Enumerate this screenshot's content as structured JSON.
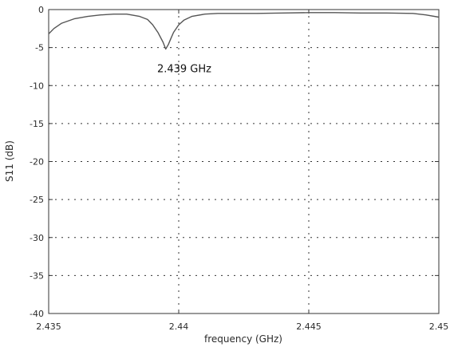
{
  "chart_data": {
    "type": "line",
    "title": "",
    "xlabel": "frequency (GHz)",
    "ylabel": "S11 (dB)",
    "xlim": [
      2.435,
      2.45
    ],
    "ylim": [
      -40,
      0
    ],
    "x_ticks": [
      "2.435",
      "2.44",
      "2.445",
      "2.45"
    ],
    "y_ticks": [
      "0",
      "-5",
      "-10",
      "-15",
      "-20",
      "-25",
      "-30",
      "-35",
      "-40"
    ],
    "grid": true,
    "grid_style": "dotted",
    "line_color": "#555555",
    "series": [
      {
        "x": [
          2.435,
          2.4352,
          2.4355,
          2.436,
          2.4365,
          2.437,
          2.4375,
          2.438,
          2.4385,
          2.4388,
          2.439,
          2.4392,
          2.4394,
          2.4395,
          2.4396,
          2.4397,
          2.4398,
          2.44,
          2.4402,
          2.4405,
          2.441,
          2.4415,
          2.442,
          2.443,
          2.444,
          2.445,
          2.446,
          2.447,
          2.448,
          2.449,
          2.4495,
          2.45
        ],
        "y": [
          -3.2,
          -2.5,
          -1.8,
          -1.2,
          -0.9,
          -0.7,
          -0.6,
          -0.6,
          -0.9,
          -1.3,
          -2.0,
          -3.0,
          -4.3,
          -5.2,
          -4.6,
          -3.8,
          -3.0,
          -2.0,
          -1.4,
          -0.9,
          -0.6,
          -0.5,
          -0.5,
          -0.5,
          -0.45,
          -0.4,
          -0.4,
          -0.45,
          -0.45,
          -0.5,
          -0.7,
          -1.0
        ]
      }
    ],
    "annotations": [
      {
        "text": "2.439 GHz",
        "x": 2.4396,
        "y": -7
      }
    ]
  }
}
